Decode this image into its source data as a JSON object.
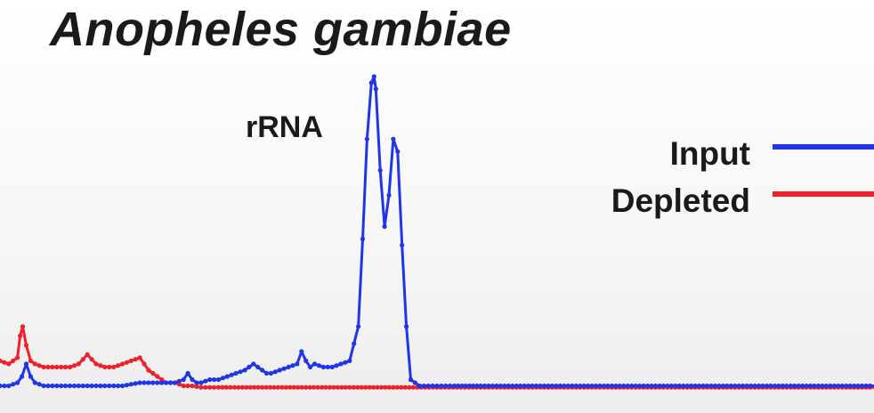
{
  "chart_data": {
    "type": "line",
    "title": "Anopheles gambiae",
    "annotations": [
      {
        "text": "rRNA",
        "x": 18,
        "y": 0.78
      }
    ],
    "legend": {
      "placement": "top-right"
    },
    "axes_visible": false,
    "xlim": [
      0,
      100
    ],
    "ylim": [
      0,
      1
    ],
    "series": [
      {
        "name": "Input",
        "color": "#1f35e6",
        "x": [
          0,
          1,
          2,
          2.5,
          3,
          3.5,
          4,
          5,
          6,
          8,
          10,
          12,
          14,
          16,
          18,
          20,
          21,
          21.5,
          22,
          22.5,
          23,
          24,
          25,
          26,
          28,
          29,
          29.5,
          30,
          30.5,
          31,
          32,
          34,
          34.5,
          35,
          35.5,
          36,
          37,
          38,
          39,
          40,
          41,
          41.5,
          42,
          42.5,
          42.8,
          43,
          43.5,
          44,
          44.5,
          45,
          45.5,
          46,
          46.5,
          47,
          48,
          49,
          50,
          52,
          55,
          60,
          65,
          70,
          75,
          80,
          85,
          90,
          95,
          100
        ],
        "y": [
          0.01,
          0.01,
          0.02,
          0.04,
          0.08,
          0.04,
          0.02,
          0.01,
          0.01,
          0.01,
          0.01,
          0.01,
          0.01,
          0.02,
          0.02,
          0.02,
          0.03,
          0.05,
          0.03,
          0.02,
          0.02,
          0.03,
          0.03,
          0.04,
          0.06,
          0.08,
          0.07,
          0.06,
          0.05,
          0.05,
          0.06,
          0.08,
          0.12,
          0.09,
          0.07,
          0.08,
          0.07,
          0.07,
          0.08,
          0.09,
          0.2,
          0.48,
          0.8,
          0.98,
          1.0,
          0.96,
          0.7,
          0.52,
          0.62,
          0.8,
          0.76,
          0.46,
          0.2,
          0.03,
          0.01,
          0.01,
          0.01,
          0.01,
          0.01,
          0.01,
          0.01,
          0.01,
          0.01,
          0.01,
          0.01,
          0.01,
          0.01,
          0.01
        ]
      },
      {
        "name": "Depleted",
        "color": "#f0202a",
        "x": [
          0,
          1,
          2,
          2.3,
          2.6,
          3,
          3.5,
          4,
          5,
          6,
          8,
          9,
          10,
          11,
          12,
          13,
          14,
          15,
          16,
          17,
          18,
          19,
          20,
          21,
          22,
          23,
          24,
          25,
          30,
          40,
          50,
          60,
          70,
          80,
          90,
          100
        ],
        "y": [
          0.09,
          0.08,
          0.1,
          0.17,
          0.2,
          0.14,
          0.09,
          0.08,
          0.07,
          0.07,
          0.07,
          0.08,
          0.11,
          0.08,
          0.07,
          0.07,
          0.08,
          0.09,
          0.1,
          0.06,
          0.04,
          0.02,
          0.02,
          0.01,
          0.01,
          0.005,
          0.005,
          0.005,
          0.005,
          0.005,
          0.005,
          0.005,
          0.005,
          0.005,
          0.005,
          0.005
        ]
      }
    ]
  }
}
